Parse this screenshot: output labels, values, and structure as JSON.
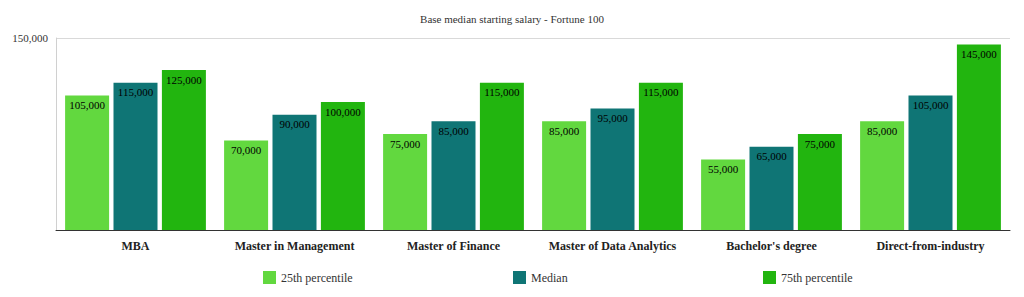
{
  "chart_data": {
    "type": "bar",
    "title": "Base median starting salary - Fortune 100",
    "categories": [
      "MBA",
      "Master in Management",
      "Master of Finance",
      "Master of Data Analytics",
      "Bachelor's degree",
      "Direct-from-industry"
    ],
    "series": [
      {
        "name": "25th percentile",
        "color": "#62d83f",
        "values": [
          105000,
          70000,
          75000,
          85000,
          55000,
          85000
        ],
        "value_labels": [
          "105,000",
          "70,000",
          "75,000",
          "85,000",
          "55,000",
          "85,000"
        ]
      },
      {
        "name": "Median",
        "color": "#0f7575",
        "values": [
          115000,
          90000,
          85000,
          95000,
          65000,
          105000
        ],
        "value_labels": [
          "115,000",
          "90,000",
          "85,000",
          "95,000",
          "65,000",
          "105,000"
        ]
      },
      {
        "name": "75th percentile",
        "color": "#22b50f",
        "values": [
          125000,
          100000,
          115000,
          115000,
          75000,
          145000
        ],
        "value_labels": [
          "125,000",
          "100,000",
          "115,000",
          "115,000",
          "75,000",
          "145,000"
        ]
      }
    ],
    "ylim": [
      0,
      150000
    ],
    "yticks": [
      {
        "value": 150000,
        "label": "150,000"
      }
    ],
    "grid": true,
    "data_labels": true,
    "legend": "bottom"
  }
}
